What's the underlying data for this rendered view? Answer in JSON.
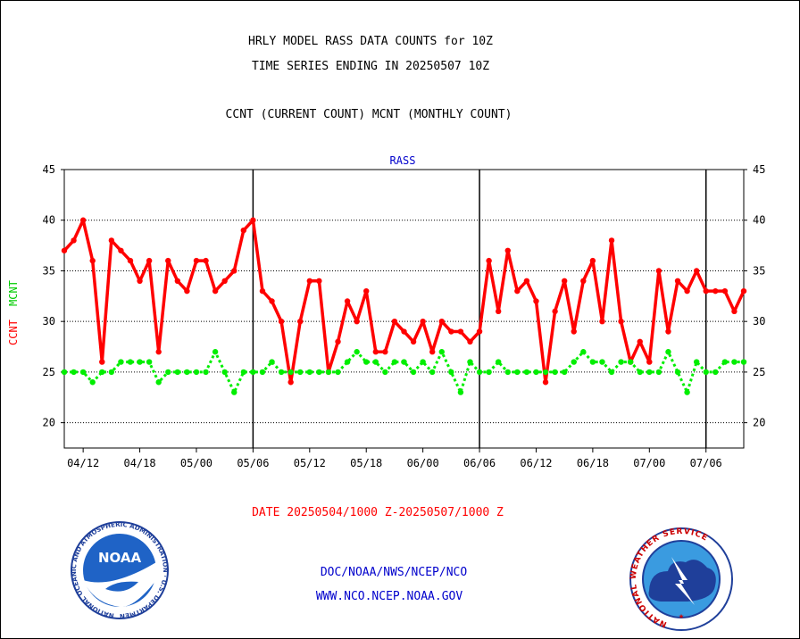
{
  "header": {
    "line1": "HRLY MODEL RASS DATA COUNTS for 10Z",
    "line2": "TIME SERIES ENDING IN 20250507 10Z",
    "line3": "CCNT (CURRENT COUNT) MCNT (MONTHLY COUNT)"
  },
  "footer": {
    "date_range": "DATE 20250504/1000 Z-20250507/1000 Z",
    "org_line": "DOC/NOAA/NWS/NCEP/NCO",
    "url_line": "WWW.NCO.NCEP.NOAA.GOV"
  },
  "logos": {
    "noaa_label": "NOAA",
    "noaa_ring_text": "NATIONAL OCEANIC AND ATMOSPHERIC ADMINISTRATION · U.S. DEPARTMENT OF COMMERCE ·",
    "nws_ring_text": "NATIONAL WEATHER SERVICE"
  },
  "colors": {
    "ccnt": "#ff0000",
    "mcnt": "#00ee00",
    "title": "#000000",
    "panel_label": "#0000cc",
    "date": "#ff0000",
    "org": "#0000cc"
  },
  "chart_data": {
    "type": "line",
    "panel_label": "RASS",
    "ylabel_series_1": "CCNT",
    "ylabel_series_2": "MCNT",
    "ylim": [
      17.5,
      45
    ],
    "y_ticks": [
      20,
      25,
      30,
      35,
      40,
      45
    ],
    "x_tick_labels": [
      "04/12",
      "04/18",
      "05/00",
      "05/06",
      "05/12",
      "05/18",
      "06/00",
      "06/06",
      "06/12",
      "06/18",
      "07/00",
      "07/06"
    ],
    "x_tick_hours": [
      2,
      8,
      14,
      20,
      26,
      32,
      38,
      44,
      50,
      56,
      62,
      68
    ],
    "x_range_hours": [
      0,
      72
    ],
    "day_boundaries_hours": [
      20,
      44,
      68
    ],
    "grid": "horizontal dotted at 20,25,30,35,40",
    "series": [
      {
        "name": "CCNT",
        "style": "solid",
        "values": [
          37,
          38,
          40,
          36,
          26,
          38,
          37,
          36,
          34,
          36,
          27,
          36,
          34,
          33,
          36,
          36,
          33,
          34,
          35,
          39,
          40,
          33,
          32,
          30,
          24,
          30,
          34,
          34,
          25,
          28,
          32,
          30,
          33,
          27,
          27,
          30,
          29,
          28,
          30,
          27,
          30,
          29,
          29,
          28,
          29,
          36,
          31,
          37,
          33,
          34,
          32,
          24,
          31,
          34,
          29,
          34,
          36,
          30,
          38,
          30,
          26,
          28,
          26,
          35,
          29,
          34,
          33,
          35,
          33,
          33,
          33,
          31,
          33
        ]
      },
      {
        "name": "MCNT",
        "style": "dotted",
        "values": [
          25,
          25,
          25,
          24,
          25,
          25,
          26,
          26,
          26,
          26,
          24,
          25,
          25,
          25,
          25,
          25,
          27,
          25,
          23,
          25,
          25,
          25,
          26,
          25,
          25,
          25,
          25,
          25,
          25,
          25,
          26,
          27,
          26,
          26,
          25,
          26,
          26,
          25,
          26,
          25,
          27,
          25,
          23,
          26,
          25,
          25,
          26,
          25,
          25,
          25,
          25,
          25,
          25,
          25,
          26,
          27,
          26,
          26,
          25,
          26,
          26,
          25,
          25,
          25,
          27,
          25,
          23,
          26,
          25,
          25,
          26,
          26,
          26
        ]
      }
    ]
  }
}
